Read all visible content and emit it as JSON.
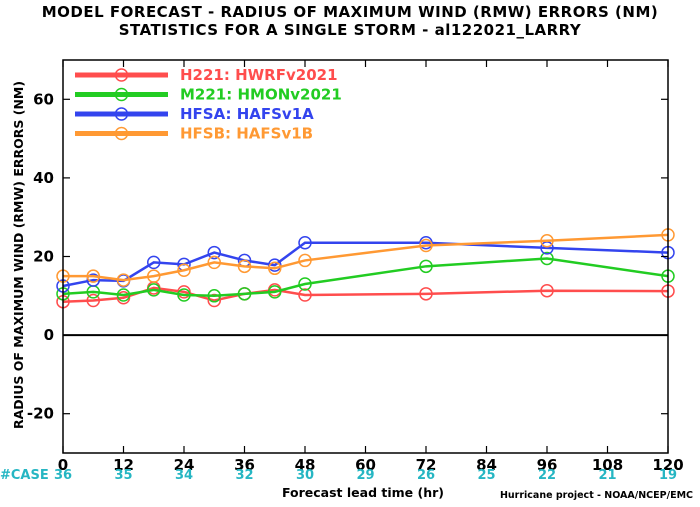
{
  "chart_data": {
    "type": "line",
    "title": "MODEL FORECAST - RADIUS OF MAXIMUM WIND (RMW) ERRORS (NM)",
    "subtitle": "STATISTICS FOR A SINGLE STORM - al122021_LARRY",
    "xlabel": "Forecast lead time (hr)",
    "ylabel": "RADIUS OF MAXIMUM WIND (RMW) ERRORS (NM)",
    "xlim": [
      0,
      120
    ],
    "ylim": [
      -30,
      70
    ],
    "x_ticks": [
      0,
      12,
      24,
      36,
      48,
      60,
      72,
      84,
      96,
      108,
      120
    ],
    "y_ticks": [
      -20,
      0,
      20,
      40,
      60
    ],
    "y_tick_labels": [
      "-20",
      "0",
      "20",
      "40",
      "60"
    ],
    "zero_line": true,
    "grid": false,
    "legend_position": "top-left",
    "series": [
      {
        "name": "H221: HWRFv2021",
        "color": "#ff4d4d",
        "x": [
          0,
          6,
          12,
          18,
          24,
          30,
          36,
          42,
          48,
          72,
          96,
          120
        ],
        "values": [
          8.5,
          8.8,
          9.5,
          12,
          11,
          8.8,
          10.5,
          11.5,
          10.2,
          10.5,
          11.3,
          11.2
        ]
      },
      {
        "name": "M221: HMONv2021",
        "color": "#22cc22",
        "x": [
          0,
          6,
          12,
          18,
          24,
          30,
          36,
          42,
          48,
          72,
          96,
          120
        ],
        "values": [
          10.5,
          11,
          10.2,
          11.5,
          10.2,
          10,
          10.5,
          11,
          13,
          17.5,
          19.5,
          15
        ]
      },
      {
        "name": "HFSA: HAFSv1A",
        "color": "#3344ee",
        "x": [
          0,
          6,
          12,
          18,
          24,
          30,
          36,
          42,
          48,
          72,
          96,
          120
        ],
        "values": [
          12.5,
          14,
          13.8,
          18.5,
          18,
          21,
          19,
          17.8,
          23.5,
          23.5,
          22.2,
          21
        ]
      },
      {
        "name": "HFSB: HAFSv1B",
        "color": "#ff9933",
        "x": [
          0,
          6,
          12,
          18,
          24,
          30,
          36,
          42,
          48,
          72,
          96,
          120
        ],
        "values": [
          15,
          15,
          14,
          15,
          16.5,
          18.5,
          17.5,
          17,
          19,
          22.8,
          24,
          25.5
        ]
      }
    ],
    "case_label": "#CASE",
    "case_x": [
      0,
      12,
      24,
      36,
      48,
      60,
      72,
      84,
      96,
      108,
      120
    ],
    "case_counts": [
      "36",
      "35",
      "34",
      "32",
      "30",
      "29",
      "26",
      "25",
      "22",
      "21",
      "19"
    ],
    "case_color": "#26b6c3",
    "credit": "Hurricane project - NOAA/NCEP/EMC"
  }
}
